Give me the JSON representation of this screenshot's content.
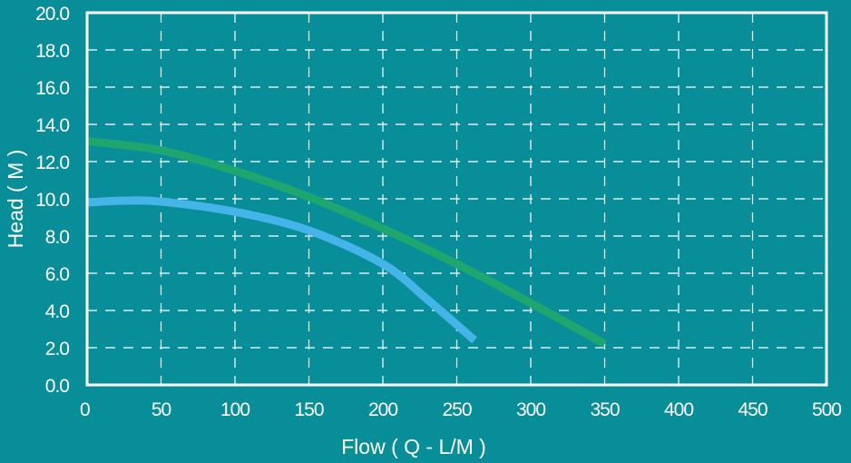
{
  "chart_data": {
    "type": "line",
    "title": "",
    "xlabel": "Flow ( Q - L/M )",
    "ylabel": "Head ( M )",
    "xlim": [
      0,
      500
    ],
    "ylim": [
      0,
      20
    ],
    "xticks": [
      "0",
      "50",
      "100",
      "150",
      "200",
      "250",
      "300",
      "350",
      "400",
      "450",
      "500"
    ],
    "yticks": [
      "0.0",
      "2.0",
      "4.0",
      "6.0",
      "8.0",
      "10.0",
      "12.0",
      "14.0",
      "16.0",
      "18.0",
      "20.0"
    ],
    "grid": true,
    "series": [
      {
        "color": "#1fa56e",
        "x": [
          0,
          50,
          100,
          150,
          200,
          250,
          300,
          350
        ],
        "y": [
          13.1,
          12.6,
          11.5,
          10.1,
          8.4,
          6.5,
          4.4,
          2.2
        ]
      },
      {
        "color": "#45b4e8",
        "x": [
          0,
          25,
          50,
          100,
          150,
          200,
          230,
          262
        ],
        "y": [
          9.8,
          9.9,
          9.85,
          9.3,
          8.3,
          6.5,
          4.6,
          2.4
        ]
      }
    ]
  },
  "colors": {
    "background": "#088e99",
    "frame": "#ffffff",
    "grid": "#ffffff"
  }
}
